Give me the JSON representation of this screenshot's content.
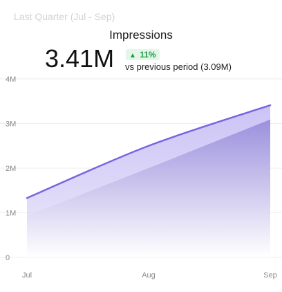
{
  "header": {
    "period": "Last Quarter (Jul - Sep)",
    "metric_title": "Impressions",
    "value": "3.41M",
    "change_pct": "11%",
    "change_direction": "up",
    "comparison": "vs previous period (3.09M)"
  },
  "colors": {
    "line_current": "#7864e0",
    "fill_current": "#cdc6f6",
    "fill_previous": "#a49ae2",
    "badge_bg": "#e3f6e8",
    "badge_text": "#1c9a46",
    "grid": "#eeeeee"
  },
  "chart_data": {
    "type": "area",
    "categories": [
      "Jul",
      "Aug",
      "Sep"
    ],
    "x_positions": [
      0,
      0.5,
      1
    ],
    "series": [
      {
        "x": [
          0,
          0.5,
          1
        ],
        "values": [
          1.33,
          2.5,
          3.41
        ]
      },
      {
        "x": [
          0,
          0.5,
          1
        ],
        "values": [
          0.93,
          2.0,
          3.09
        ]
      }
    ],
    "ylim": [
      0,
      4
    ],
    "yticks": [
      0,
      1,
      2,
      3,
      4
    ],
    "ytick_labels": [
      "0",
      "1M",
      "2M",
      "3M",
      "4M"
    ],
    "grid": true,
    "legend": "none"
  }
}
